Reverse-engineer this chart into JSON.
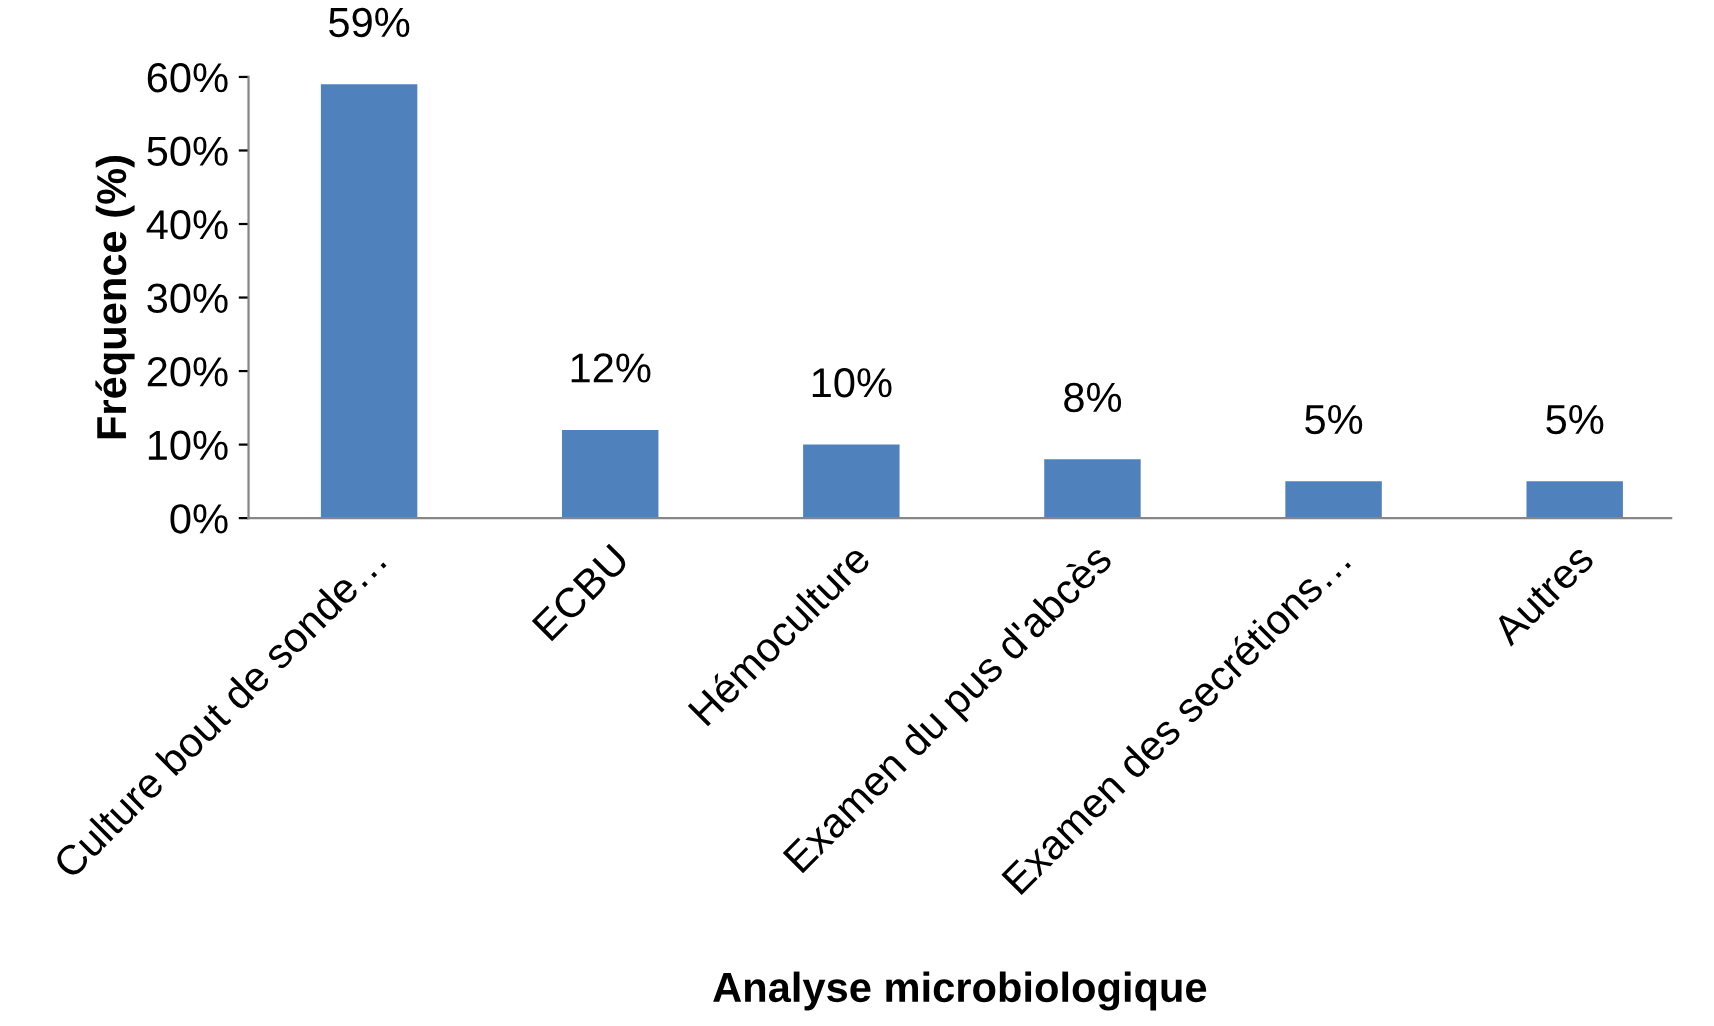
{
  "chart_data": {
    "type": "bar",
    "xlabel": "Analyse microbiologique",
    "ylabel": "Fréquence (%)",
    "categories": [
      "Culture bout de sonde…",
      "ECBU",
      "Hémoculture",
      "Examen du pus d'abcès",
      "Examen des secrétions…",
      "Autres"
    ],
    "values": [
      59,
      12,
      10,
      8,
      5,
      5
    ],
    "value_labels": [
      "59%",
      "12%",
      "10%",
      "8%",
      "5%",
      "5%"
    ],
    "color": "#4f81bd",
    "ylim": [
      0,
      60
    ],
    "yticks": [
      {
        "value": 0,
        "label": "0%"
      },
      {
        "value": 10,
        "label": "10%"
      },
      {
        "value": 20,
        "label": "20%"
      },
      {
        "value": 30,
        "label": "30%"
      },
      {
        "value": 40,
        "label": "40%"
      },
      {
        "value": 50,
        "label": "50%"
      },
      {
        "value": 60,
        "label": "60%"
      }
    ],
    "grid": false,
    "legend": false
  }
}
